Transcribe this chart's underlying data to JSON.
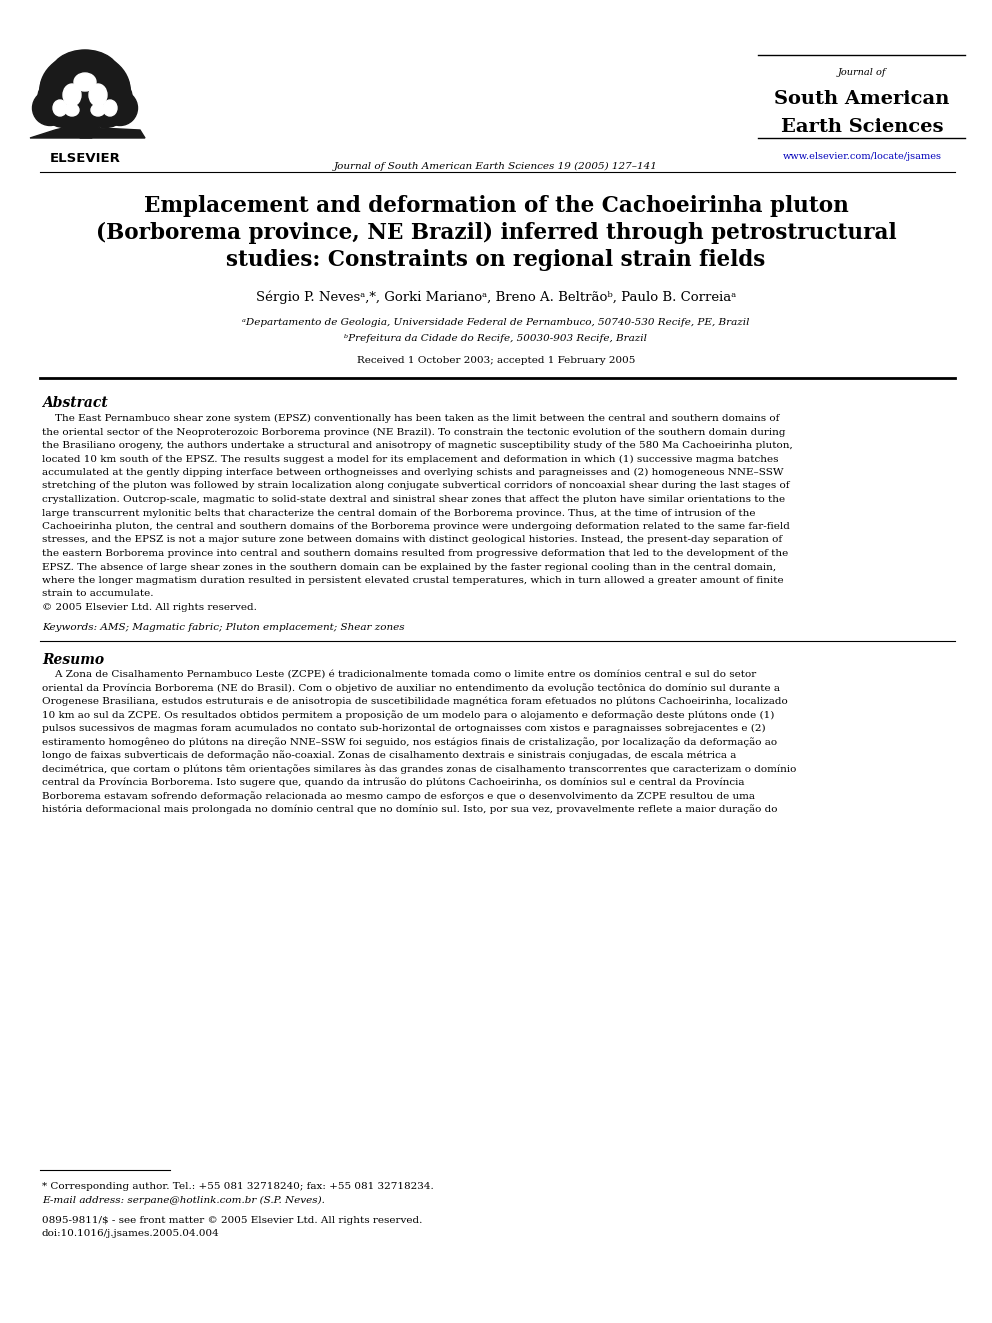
{
  "title_line1": "Emplacement and deformation of the Cachoeirinha pluton",
  "title_line2": "(Borborema province, NE Brazil) inferred through petrostructural",
  "title_line3": "studies: Constraints on regional strain fields",
  "authors": "Sérgio P. Nevesᵃ,*, Gorki Marianoᵃ, Breno A. Beltrãoᵇ, Paulo B. Correiaᵃ",
  "affil_a": "ᵃDepartamento de Geologia, Universidade Federal de Pernambuco, 50740-530 Recife, PE, Brazil",
  "affil_b": "ᵇPrefeitura da Cidade do Recife, 50030-903 Recife, Brazil",
  "received": "Received 1 October 2003; accepted 1 February 2005",
  "journal_center": "Journal of South American Earth Sciences 19 (2005) 127–141",
  "journal_name_small": "Journal of",
  "journal_name_large1": "South American",
  "journal_name_large2": "Earth Sciences",
  "journal_url": "www.elsevier.com/locate/jsames",
  "abstract_title": "Abstract",
  "keywords": "Keywords: AMS; Magmatic fabric; Pluton emplacement; Shear zones",
  "resumo_title": "Resumo",
  "footer_line1": "* Corresponding author. Tel.: +55 081 32718240; fax: +55 081 32718234.",
  "footer_line2": "E-mail address: serpane@hotlink.com.br (S.P. Neves).",
  "footer_line3": "0895-9811/$ - see front matter © 2005 Elsevier Ltd. All rights reserved.",
  "footer_line4": "doi:10.1016/j.jsames.2005.04.004",
  "bg_color": "#ffffff",
  "text_color": "#000000",
  "link_color": "#0000bb",
  "abstract_lines": [
    "    The East Pernambuco shear zone system (EPSZ) conventionally has been taken as the limit between the central and southern domains of",
    "the oriental sector of the Neoproterozoic Borborema province (NE Brazil). To constrain the tectonic evolution of the southern domain during",
    "the Brasiliano orogeny, the authors undertake a structural and anisotropy of magnetic susceptibility study of the 580 Ma Cachoeirinha pluton,",
    "located 10 km south of the EPSZ. The results suggest a model for its emplacement and deformation in which (1) successive magma batches",
    "accumulated at the gently dipping interface between orthogneisses and overlying schists and paragneisses and (2) homogeneous NNE–SSW",
    "stretching of the pluton was followed by strain localization along conjugate subvertical corridors of noncoaxial shear during the last stages of",
    "crystallization. Outcrop-scale, magmatic to solid-state dextral and sinistral shear zones that affect the pluton have similar orientations to the",
    "large transcurrent mylonitic belts that characterize the central domain of the Borborema province. Thus, at the time of intrusion of the",
    "Cachoeirinha pluton, the central and southern domains of the Borborema province were undergoing deformation related to the same far-field",
    "stresses, and the EPSZ is not a major suture zone between domains with distinct geological histories. Instead, the present-day separation of",
    "the eastern Borborema province into central and southern domains resulted from progressive deformation that led to the development of the",
    "EPSZ. The absence of large shear zones in the southern domain can be explained by the faster regional cooling than in the central domain,",
    "where the longer magmatism duration resulted in persistent elevated crustal temperatures, which in turn allowed a greater amount of finite",
    "strain to accumulate.",
    "© 2005 Elsevier Ltd. All rights reserved."
  ],
  "resumo_lines": [
    "    A Zona de Cisalhamento Pernambuco Leste (ZCPE) é tradicionalmente tomada como o limite entre os domínios central e sul do setor",
    "oriental da Província Borborema (NE do Brasil). Com o objetivo de auxiliar no entendimento da evolução tectônica do domínio sul durante a",
    "Orogenese Brasiliana, estudos estruturais e de anisotropia de suscetibilidade magnética foram efetuados no plútons Cachoeirinha, localizado",
    "10 km ao sul da ZCPE. Os resultados obtidos permitem a proposição de um modelo para o alojamento e deformação deste plútons onde (1)",
    "pulsos sucessivos de magmas foram acumulados no contato sub-horizontal de ortognaisses com xistos e paragnaisses sobrejacentes e (2)",
    "estiramento homogêneo do plútons na direção NNE–SSW foi seguido, nos estágios finais de cristalização, por localização da deformação ao",
    "longo de faixas subverticais de deformação não-coaxial. Zonas de cisalhamento dextrais e sinistrais conjugadas, de escala métrica a",
    "decimétrica, que cortam o plútons têm orientações similares às das grandes zonas de cisalhamento transcorrentes que caracterizam o domínio",
    "central da Província Borborema. Isto sugere que, quando da intrusão do plútons Cachoeirinha, os domínios sul e central da Província",
    "Borborema estavam sofrendo deformação relacionada ao mesmo campo de esforços e que o desenvolvimento da ZCPE resultou de uma",
    "história deformacional mais prolongada no domínio central que no domínio sul. Isto, por sua vez, provavelmente reflete a maior duração do"
  ]
}
